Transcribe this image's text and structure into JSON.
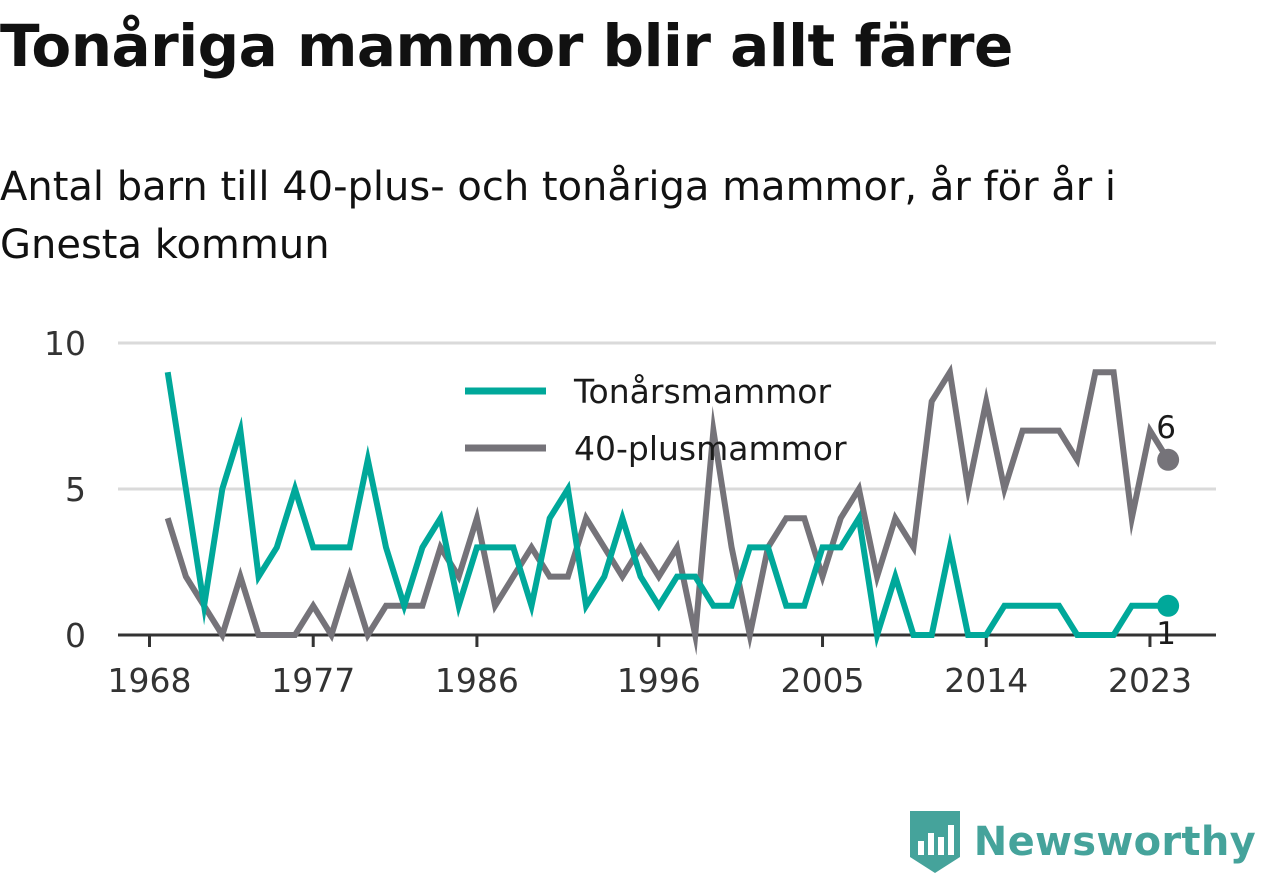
{
  "title": "Tonåriga mammor blir allt färre",
  "subtitle": "Antal barn till 40-plus- och tonåriga mammor, år för år i Gnesta kommun",
  "brand": "Newsworthy",
  "colors": {
    "teen": "#00A89A",
    "forty": "#757379",
    "grid": "#DADADA",
    "axis": "#333333",
    "brand": "#45A39B"
  },
  "chart_data": {
    "type": "line",
    "title": "Tonåriga mammor blir allt färre",
    "subtitle": "Antal barn till 40-plus- och tonåriga mammor, år för år i Gnesta kommun",
    "xlabel": "",
    "ylabel": "",
    "xlim": [
      1968,
      2024
    ],
    "ylim": [
      0,
      10
    ],
    "x_ticks": [
      1968,
      1977,
      1986,
      1996,
      2005,
      2014,
      2023
    ],
    "y_ticks": [
      0,
      5,
      10
    ],
    "grid": true,
    "legend_position": "top-center",
    "x": [
      1969,
      1970,
      1971,
      1972,
      1973,
      1974,
      1975,
      1976,
      1977,
      1978,
      1979,
      1980,
      1981,
      1982,
      1983,
      1984,
      1985,
      1986,
      1987,
      1988,
      1989,
      1990,
      1991,
      1992,
      1993,
      1994,
      1995,
      1996,
      1997,
      1998,
      1999,
      2000,
      2001,
      2002,
      2003,
      2004,
      2005,
      2006,
      2007,
      2008,
      2009,
      2010,
      2011,
      2012,
      2013,
      2014,
      2015,
      2016,
      2017,
      2018,
      2019,
      2020,
      2021,
      2022,
      2023,
      2024
    ],
    "series": [
      {
        "name": "Tonårsmammor",
        "color": "#00A89A",
        "values": [
          9,
          5,
          1,
          5,
          7,
          2,
          3,
          5,
          3,
          3,
          3,
          6,
          3,
          1,
          3,
          4,
          1,
          3,
          3,
          3,
          1,
          4,
          5,
          1,
          2,
          4,
          2,
          1,
          2,
          2,
          1,
          1,
          3,
          3,
          1,
          1,
          3,
          3,
          4,
          0,
          2,
          0,
          0,
          3,
          0,
          0,
          1,
          1,
          1,
          1,
          0,
          0,
          0,
          1,
          1,
          1
        ],
        "end_label": "1"
      },
      {
        "name": "40-plusmammor",
        "color": "#757379",
        "values": [
          4,
          2,
          1,
          0,
          2,
          0,
          0,
          0,
          1,
          0,
          2,
          0,
          1,
          1,
          1,
          3,
          2,
          4,
          1,
          2,
          3,
          2,
          2,
          4,
          3,
          2,
          3,
          2,
          3,
          0,
          7,
          3,
          0,
          3,
          4,
          4,
          2,
          4,
          5,
          2,
          4,
          3,
          8,
          9,
          5,
          8,
          5,
          7,
          7,
          7,
          6,
          9,
          9,
          4,
          7,
          6
        ],
        "end_label": "6"
      }
    ]
  }
}
